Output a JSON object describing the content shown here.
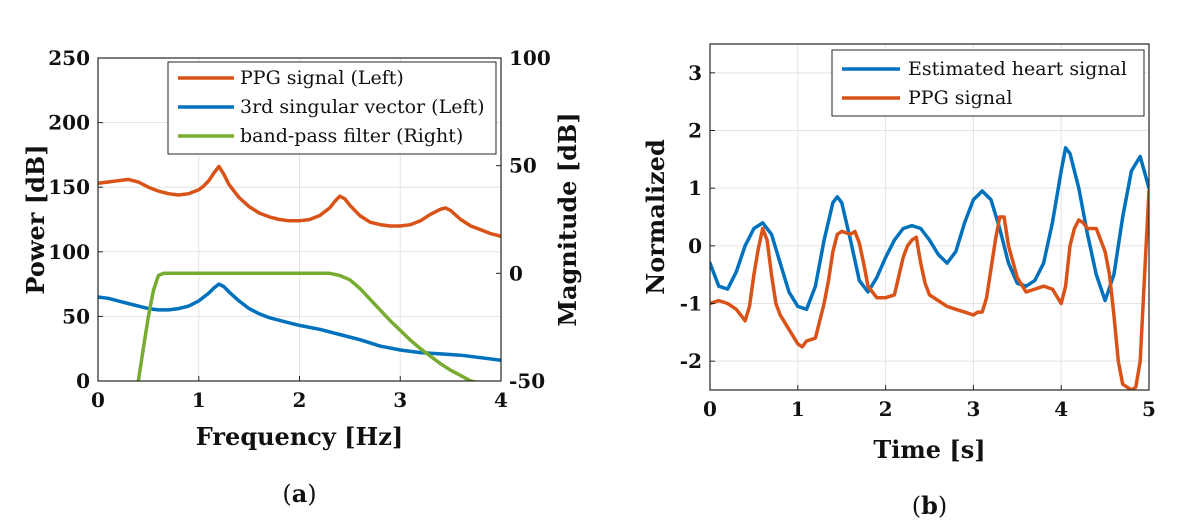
{
  "chart_data": [
    {
      "type": "line",
      "caption": "(a)",
      "caption_letter": "a",
      "xlabel": "Frequency [Hz]",
      "ylabel_left": "Power [dB]",
      "ylabel_right": "Magnitude [dB]",
      "xlim": [
        0,
        4
      ],
      "ylim_left": [
        0,
        250
      ],
      "ylim_right": [
        -50,
        100
      ],
      "xticks": [
        "0",
        "1",
        "2",
        "3",
        "4"
      ],
      "yticks_left": [
        "0",
        "50",
        "100",
        "150",
        "200",
        "250"
      ],
      "yticks_right": [
        "-50",
        "0",
        "50",
        "100"
      ],
      "grid": true,
      "legend_position": "top-right",
      "series": [
        {
          "name": "PPG signal (Left)",
          "axis": "left",
          "color": "#D95319",
          "x": [
            0,
            0.1,
            0.2,
            0.3,
            0.4,
            0.5,
            0.6,
            0.7,
            0.8,
            0.9,
            1.0,
            1.05,
            1.1,
            1.15,
            1.2,
            1.25,
            1.3,
            1.4,
            1.5,
            1.6,
            1.7,
            1.8,
            1.9,
            2.0,
            2.1,
            2.2,
            2.3,
            2.35,
            2.4,
            2.45,
            2.5,
            2.6,
            2.7,
            2.8,
            2.9,
            3.0,
            3.1,
            3.2,
            3.3,
            3.4,
            3.45,
            3.5,
            3.6,
            3.7,
            3.8,
            3.9,
            4.0
          ],
          "values": [
            153,
            154,
            155,
            156,
            154,
            150,
            147,
            145,
            144,
            145,
            148,
            151,
            155,
            161,
            166,
            160,
            152,
            142,
            135,
            130,
            127,
            125,
            124,
            124,
            125,
            128,
            134,
            139,
            143,
            141,
            136,
            128,
            123,
            121,
            120,
            120,
            121,
            124,
            129,
            133,
            134,
            132,
            125,
            120,
            117,
            114,
            112
          ]
        },
        {
          "name": "3rd singular vector (Left)",
          "axis": "left",
          "color": "#0072BD",
          "x": [
            0,
            0.1,
            0.2,
            0.3,
            0.4,
            0.5,
            0.6,
            0.7,
            0.8,
            0.9,
            1.0,
            1.1,
            1.15,
            1.2,
            1.25,
            1.3,
            1.4,
            1.5,
            1.6,
            1.7,
            1.8,
            1.9,
            2.0,
            2.2,
            2.4,
            2.6,
            2.8,
            3.0,
            3.2,
            3.4,
            3.6,
            3.8,
            4.0
          ],
          "values": [
            65,
            64,
            62,
            60,
            58,
            56,
            55,
            55,
            56,
            58,
            62,
            68,
            72,
            75,
            73,
            69,
            62,
            56,
            52,
            49,
            47,
            45,
            43,
            40,
            36,
            32,
            27,
            24,
            22,
            21,
            20,
            18,
            16
          ]
        },
        {
          "name": "band-pass filter (Right)",
          "axis": "right",
          "color": "#77AC30",
          "x": [
            0.4,
            0.45,
            0.5,
            0.55,
            0.6,
            0.65,
            0.7,
            1.0,
            1.5,
            2.0,
            2.3,
            2.4,
            2.5,
            2.6,
            2.7,
            2.8,
            2.9,
            3.0,
            3.1,
            3.2,
            3.3,
            3.4,
            3.5,
            3.6,
            3.7,
            3.8
          ],
          "values": [
            -50,
            -35,
            -20,
            -8,
            -1,
            0,
            0,
            0,
            0,
            0,
            0,
            -1,
            -3,
            -7,
            -12,
            -17,
            -22,
            -26.5,
            -31,
            -35,
            -38.5,
            -42,
            -45,
            -47.5,
            -50,
            -51
          ]
        }
      ]
    },
    {
      "type": "line",
      "caption": "(b)",
      "caption_letter": "b",
      "xlabel": "Time [s]",
      "ylabel": "Normalized",
      "xlim": [
        0,
        5
      ],
      "ylim": [
        -2.5,
        3.5
      ],
      "xticks": [
        "0",
        "1",
        "2",
        "3",
        "4",
        "5"
      ],
      "yticks": [
        "-2",
        "-1",
        "0",
        "1",
        "2",
        "3"
      ],
      "grid": true,
      "legend_position": "top-right",
      "series": [
        {
          "name": "Estimated heart signal",
          "color": "#0072BD",
          "x": [
            0,
            0.1,
            0.2,
            0.3,
            0.4,
            0.5,
            0.6,
            0.7,
            0.8,
            0.9,
            1.0,
            1.1,
            1.2,
            1.3,
            1.4,
            1.45,
            1.5,
            1.6,
            1.7,
            1.8,
            1.9,
            2.0,
            2.1,
            2.2,
            2.3,
            2.4,
            2.5,
            2.6,
            2.7,
            2.8,
            2.9,
            3.0,
            3.1,
            3.2,
            3.3,
            3.4,
            3.5,
            3.6,
            3.7,
            3.8,
            3.9,
            4.0,
            4.05,
            4.1,
            4.2,
            4.3,
            4.4,
            4.5,
            4.6,
            4.7,
            4.8,
            4.9,
            5.0
          ],
          "values": [
            -0.3,
            -0.7,
            -0.75,
            -0.45,
            0,
            0.3,
            0.4,
            0.2,
            -0.3,
            -0.8,
            -1.05,
            -1.1,
            -0.7,
            0.1,
            0.75,
            0.85,
            0.75,
            0.1,
            -0.6,
            -0.8,
            -0.55,
            -0.2,
            0.1,
            0.3,
            0.35,
            0.3,
            0.1,
            -0.15,
            -0.3,
            -0.1,
            0.4,
            0.8,
            0.95,
            0.8,
            0.3,
            -0.3,
            -0.65,
            -0.7,
            -0.6,
            -0.3,
            0.4,
            1.3,
            1.7,
            1.6,
            1.0,
            0.2,
            -0.5,
            -0.95,
            -0.5,
            0.5,
            1.3,
            1.55,
            1.0
          ]
        },
        {
          "name": "PPG signal",
          "color": "#D95319",
          "x": [
            0,
            0.1,
            0.2,
            0.3,
            0.35,
            0.4,
            0.45,
            0.5,
            0.55,
            0.6,
            0.65,
            0.7,
            0.75,
            0.8,
            0.9,
            1.0,
            1.05,
            1.1,
            1.2,
            1.3,
            1.35,
            1.4,
            1.45,
            1.5,
            1.6,
            1.65,
            1.7,
            1.75,
            1.8,
            1.9,
            2.0,
            2.1,
            2.2,
            2.25,
            2.3,
            2.35,
            2.4,
            2.45,
            2.5,
            2.6,
            2.7,
            2.8,
            2.9,
            3.0,
            3.05,
            3.1,
            3.15,
            3.2,
            3.25,
            3.3,
            3.35,
            3.4,
            3.5,
            3.6,
            3.7,
            3.8,
            3.9,
            4.0,
            4.05,
            4.1,
            4.15,
            4.2,
            4.25,
            4.3,
            4.4,
            4.5,
            4.55,
            4.6,
            4.65,
            4.7,
            4.75,
            4.8,
            4.85,
            4.9,
            4.95,
            5.0
          ],
          "values": [
            -1.0,
            -0.95,
            -1.0,
            -1.1,
            -1.2,
            -1.3,
            -1.05,
            -0.5,
            -0.05,
            0.3,
            0.1,
            -0.5,
            -1.0,
            -1.2,
            -1.45,
            -1.7,
            -1.75,
            -1.65,
            -1.6,
            -1.0,
            -0.6,
            -0.1,
            0.2,
            0.25,
            0.2,
            0.25,
            0.05,
            -0.3,
            -0.7,
            -0.9,
            -0.9,
            -0.85,
            -0.2,
            0.0,
            0.1,
            0.15,
            -0.3,
            -0.65,
            -0.85,
            -0.95,
            -1.05,
            -1.1,
            -1.15,
            -1.2,
            -1.15,
            -1.15,
            -0.9,
            -0.4,
            0.1,
            0.5,
            0.5,
            0.0,
            -0.55,
            -0.8,
            -0.75,
            -0.7,
            -0.75,
            -1.0,
            -0.7,
            0.0,
            0.3,
            0.45,
            0.4,
            0.3,
            0.3,
            -0.1,
            -0.5,
            -1.2,
            -2.0,
            -2.4,
            -2.45,
            -2.5,
            -2.45,
            -2.0,
            -0.5,
            0.95
          ]
        }
      ]
    }
  ]
}
